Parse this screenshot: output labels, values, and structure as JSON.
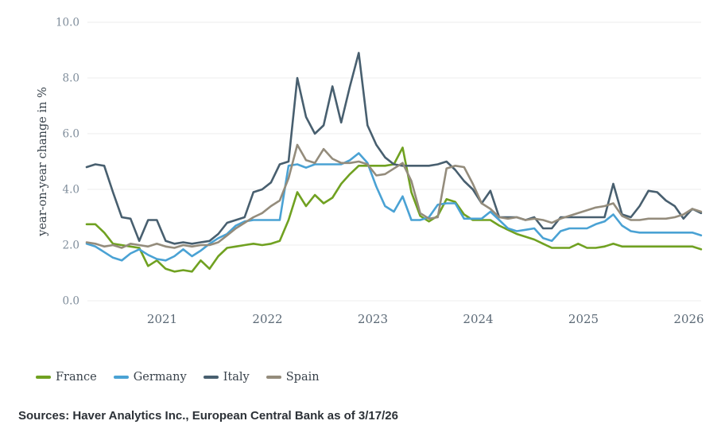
{
  "sources": {
    "text": "Sources: Haver Analytics Inc., European Central Bank as of 3/17/26"
  },
  "style": {
    "background": "#ffffff",
    "gridline_color": "#ededed",
    "y_tick_color": "#7f8d9b",
    "x_tick_color": "#5b6976",
    "y_title_color": "#3a444d",
    "legend_text_color": "#39424b",
    "sources_text_color": "#2c3137"
  },
  "chart_data": {
    "type": "line",
    "title": "",
    "xlabel": "",
    "ylabel": "year-on-year change in %",
    "ylim": [
      0,
      10
    ],
    "grid": "horizontal-only",
    "legend_position": "bottom-left",
    "x_start_year": 2020.283,
    "x_step": "monthly",
    "y_ticks": [
      {
        "value": 0,
        "label": "0.0"
      },
      {
        "value": 2,
        "label": "2.0"
      },
      {
        "value": 4,
        "label": "4.0"
      },
      {
        "value": 6,
        "label": "6.0"
      },
      {
        "value": 8,
        "label": "8.0"
      },
      {
        "value": 10,
        "label": "10.0"
      }
    ],
    "x_ticks": [
      {
        "value": 2021,
        "label": "2021"
      },
      {
        "value": 2022,
        "label": "2022"
      },
      {
        "value": 2023,
        "label": "2023"
      },
      {
        "value": 2024,
        "label": "2024"
      },
      {
        "value": 2025,
        "label": "2025"
      },
      {
        "value": 2026,
        "label": "2026"
      }
    ],
    "series": [
      {
        "name": "France",
        "color": "#70a121",
        "values": [
          2.75,
          2.75,
          2.45,
          2.05,
          2.0,
          1.95,
          1.9,
          1.25,
          1.45,
          1.15,
          1.05,
          1.1,
          1.05,
          1.45,
          1.15,
          1.6,
          1.9,
          1.95,
          2.0,
          2.05,
          2.0,
          2.05,
          2.15,
          2.9,
          3.9,
          3.4,
          3.8,
          3.5,
          3.7,
          4.2,
          4.55,
          4.85,
          4.85,
          4.85,
          4.85,
          4.9,
          5.5,
          3.9,
          3.05,
          2.85,
          3.05,
          3.65,
          3.55,
          3.1,
          2.9,
          2.9,
          2.9,
          2.7,
          2.55,
          2.4,
          2.3,
          2.2,
          2.05,
          1.9,
          1.9,
          1.9,
          2.05,
          1.9,
          1.9,
          1.95,
          2.05,
          1.95,
          1.95,
          1.95,
          1.95,
          1.95,
          1.95,
          1.95,
          1.95,
          1.95,
          1.85
        ]
      },
      {
        "name": "Germany",
        "color": "#4aa2d4",
        "values": [
          2.05,
          1.95,
          1.75,
          1.55,
          1.45,
          1.7,
          1.85,
          1.65,
          1.5,
          1.45,
          1.6,
          1.85,
          1.6,
          1.8,
          2.05,
          2.25,
          2.4,
          2.7,
          2.85,
          2.9,
          2.9,
          2.9,
          2.9,
          4.85,
          4.9,
          4.78,
          4.9,
          4.9,
          4.9,
          4.9,
          5.05,
          5.3,
          4.95,
          4.1,
          3.4,
          3.2,
          3.75,
          2.9,
          2.9,
          3.0,
          3.45,
          3.5,
          3.5,
          2.95,
          2.95,
          2.95,
          3.2,
          2.9,
          2.6,
          2.5,
          2.55,
          2.6,
          2.25,
          2.15,
          2.5,
          2.6,
          2.6,
          2.6,
          2.75,
          2.85,
          3.1,
          2.7,
          2.5,
          2.45,
          2.45,
          2.45,
          2.45,
          2.45,
          2.45,
          2.45,
          2.35
        ]
      },
      {
        "name": "Italy",
        "color": "#485f6f",
        "values": [
          4.8,
          4.9,
          4.85,
          3.9,
          3.0,
          2.95,
          2.15,
          2.9,
          2.9,
          2.15,
          2.05,
          2.1,
          2.05,
          2.1,
          2.15,
          2.4,
          2.8,
          2.9,
          3.0,
          3.9,
          4.0,
          4.25,
          4.9,
          5.0,
          8.0,
          6.6,
          6.0,
          6.3,
          7.7,
          6.4,
          7.7,
          8.9,
          6.3,
          5.6,
          5.15,
          4.9,
          4.85,
          4.85,
          4.85,
          4.85,
          4.9,
          5.0,
          4.7,
          4.3,
          4.0,
          3.5,
          3.95,
          3.0,
          3.0,
          3.0,
          2.9,
          3.0,
          2.6,
          2.6,
          3.0,
          3.0,
          3.0,
          3.0,
          3.0,
          3.0,
          4.2,
          3.1,
          3.0,
          3.4,
          3.95,
          3.9,
          3.6,
          3.4,
          2.95,
          3.3,
          3.15
        ]
      },
      {
        "name": "Spain",
        "color": "#948c7c",
        "values": [
          2.1,
          2.05,
          1.95,
          2.0,
          1.9,
          2.05,
          2.0,
          1.95,
          2.05,
          1.95,
          1.9,
          2.0,
          1.95,
          2.0,
          2.0,
          2.1,
          2.35,
          2.6,
          2.8,
          3.0,
          3.15,
          3.4,
          3.6,
          4.4,
          5.6,
          5.05,
          4.95,
          5.45,
          5.1,
          4.95,
          4.95,
          5.0,
          4.9,
          4.5,
          4.55,
          4.75,
          4.95,
          4.3,
          3.15,
          2.95,
          3.0,
          4.75,
          4.85,
          4.8,
          4.2,
          3.5,
          3.3,
          3.0,
          2.95,
          3.0,
          2.9,
          2.95,
          2.9,
          2.8,
          2.95,
          3.05,
          3.15,
          3.25,
          3.35,
          3.4,
          3.5,
          3.05,
          2.9,
          2.9,
          2.95,
          2.95,
          2.95,
          3.0,
          3.1,
          3.3,
          3.2
        ]
      }
    ]
  }
}
